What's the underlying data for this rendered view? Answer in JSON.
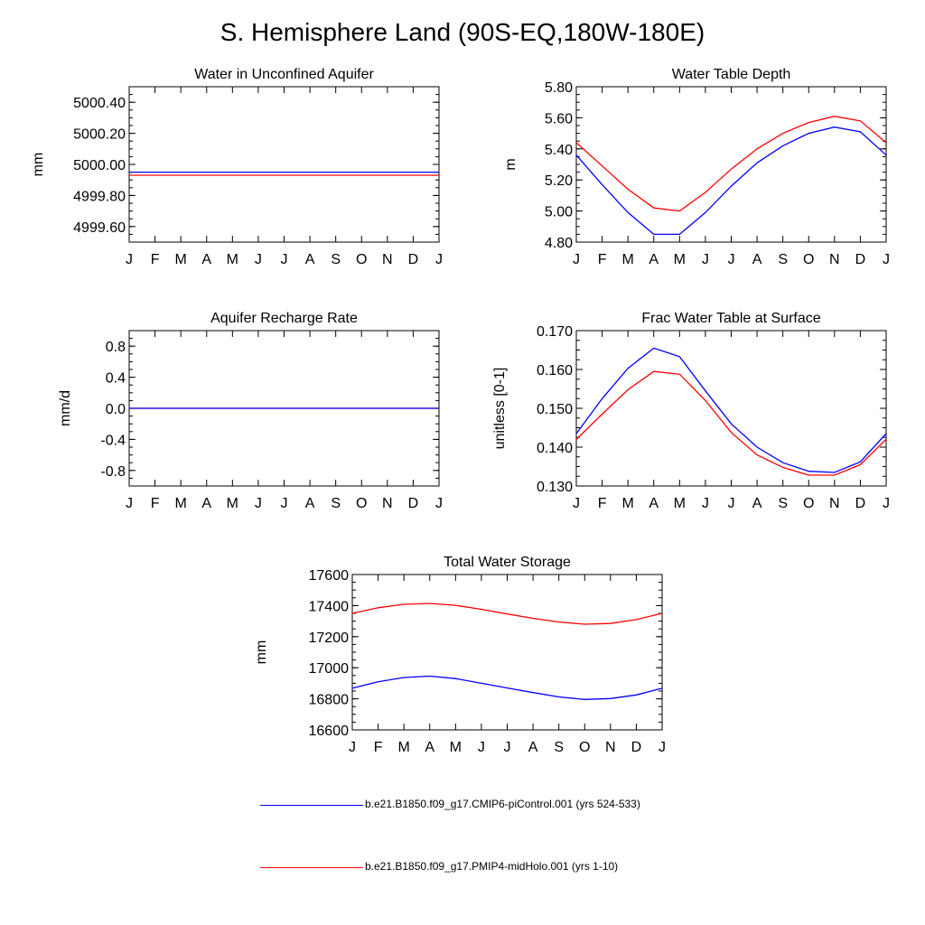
{
  "title": "S. Hemisphere Land (90S-EQ,180W-180E)",
  "months": [
    "J",
    "F",
    "M",
    "A",
    "M",
    "J",
    "J",
    "A",
    "S",
    "O",
    "N",
    "D",
    "J"
  ],
  "legend": [
    {
      "label": "b.e21.B1850.f09_g17.CMIP6-piControl.001 (yrs 524-533)",
      "color": "#0000ff"
    },
    {
      "label": "b.e21.B1850.f09_g17.PMIP4-midHolo.001 (yrs 1-10)",
      "color": "#ff0000"
    }
  ],
  "chart_data": [
    {
      "type": "line",
      "title": "Water in Unconfined Aquifer",
      "ylabel": "mm",
      "ylim": [
        4999.5,
        5000.5
      ],
      "yticks": [
        "5000.40",
        "5000.20",
        "5000.00",
        "4999.80",
        "4999.60"
      ],
      "ytick_values": [
        5000.4,
        5000.2,
        5000.0,
        4999.8,
        4999.6
      ],
      "series": [
        {
          "color": "#0000ff",
          "values": [
            4999.95,
            4999.95,
            4999.95,
            4999.95,
            4999.95,
            4999.95,
            4999.95,
            4999.95,
            4999.95,
            4999.95,
            4999.95,
            4999.95,
            4999.95
          ]
        },
        {
          "color": "#ff0000",
          "values": [
            4999.93,
            4999.93,
            4999.93,
            4999.93,
            4999.93,
            4999.93,
            4999.93,
            4999.93,
            4999.93,
            4999.93,
            4999.93,
            4999.93,
            4999.93
          ]
        }
      ]
    },
    {
      "type": "line",
      "title": "Water Table Depth",
      "ylabel": "m",
      "ylim": [
        4.8,
        5.8
      ],
      "yticks": [
        "5.80",
        "5.60",
        "5.40",
        "5.20",
        "5.00",
        "4.80"
      ],
      "ytick_values": [
        5.8,
        5.6,
        5.4,
        5.2,
        5.0,
        4.8
      ],
      "series": [
        {
          "color": "#0000ff",
          "values": [
            5.36,
            5.17,
            4.99,
            4.85,
            4.85,
            4.99,
            5.16,
            5.31,
            5.42,
            5.5,
            5.54,
            5.51,
            5.36
          ]
        },
        {
          "color": "#ff0000",
          "values": [
            5.44,
            5.29,
            5.14,
            5.02,
            5.0,
            5.12,
            5.27,
            5.4,
            5.5,
            5.57,
            5.61,
            5.58,
            5.44
          ]
        }
      ]
    },
    {
      "type": "line",
      "title": "Aquifer Recharge Rate",
      "ylabel": "mm/d",
      "ylim": [
        -1.0,
        1.0
      ],
      "yticks": [
        "0.8",
        "0.4",
        "0.0",
        "-0.4",
        "-0.8"
      ],
      "ytick_values": [
        0.8,
        0.4,
        0.0,
        -0.4,
        -0.8
      ],
      "series": [
        {
          "color": "#ff0000",
          "values": [
            0,
            0,
            0,
            0,
            0,
            0,
            0,
            0,
            0,
            0,
            0,
            0,
            0
          ]
        },
        {
          "color": "#0000ff",
          "values": [
            0,
            0,
            0,
            0,
            0,
            0,
            0,
            0,
            0,
            0,
            0,
            0,
            0
          ]
        }
      ]
    },
    {
      "type": "line",
      "title": "Frac Water Table at Surface",
      "ylabel": "unitless [0-1]",
      "ylim": [
        0.13,
        0.17
      ],
      "yticks": [
        "0.170",
        "0.160",
        "0.150",
        "0.140",
        "0.130"
      ],
      "ytick_values": [
        0.17,
        0.16,
        0.15,
        0.14,
        0.13
      ],
      "series": [
        {
          "color": "#0000ff",
          "values": [
            0.1435,
            0.1525,
            0.1603,
            0.1655,
            0.1633,
            0.1545,
            0.146,
            0.14,
            0.136,
            0.1338,
            0.1335,
            0.1362,
            0.1435
          ]
        },
        {
          "color": "#ff0000",
          "values": [
            0.142,
            0.1485,
            0.1548,
            0.1595,
            0.1588,
            0.152,
            0.1438,
            0.138,
            0.1348,
            0.1328,
            0.1328,
            0.1355,
            0.142
          ]
        }
      ]
    },
    {
      "type": "line",
      "title": "Total Water Storage",
      "ylabel": "mm",
      "ylim": [
        16600,
        17600
      ],
      "yticks": [
        "17600",
        "17400",
        "17200",
        "17000",
        "16800",
        "16600"
      ],
      "ytick_values": [
        17600,
        17400,
        17200,
        17000,
        16800,
        16600
      ],
      "series": [
        {
          "color": "#0000ff",
          "values": [
            16868,
            16910,
            16937,
            16946,
            16930,
            16900,
            16870,
            16840,
            16812,
            16796,
            16802,
            16825,
            16868
          ]
        },
        {
          "color": "#ff0000",
          "values": [
            17350,
            17386,
            17408,
            17414,
            17402,
            17376,
            17346,
            17318,
            17294,
            17280,
            17285,
            17310,
            17350
          ]
        }
      ]
    }
  ]
}
